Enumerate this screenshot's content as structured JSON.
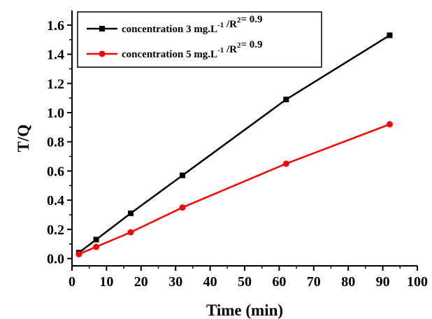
{
  "chart_data": {
    "type": "line",
    "xlabel": "Time (min)",
    "ylabel": "T/Q",
    "xlim": [
      0,
      100
    ],
    "ylim": [
      -0.05,
      1.7
    ],
    "x_ticks": [
      "0",
      "10",
      "20",
      "30",
      "40",
      "50",
      "60",
      "70",
      "80",
      "90",
      "100"
    ],
    "y_ticks": [
      "0.0",
      "0.2",
      "0.4",
      "0.6",
      "0.8",
      "1.0",
      "1.2",
      "1.4",
      "1.6"
    ],
    "legend_position": "top-left",
    "grid": false,
    "series": [
      {
        "name": "concentration 3 mg.L-1 /R2= 0.9",
        "legend": {
          "pre": "concentration 3 mg.L",
          "sup1": "-1",
          "mid": " /R",
          "sup2": "2",
          "post": "= 0.9"
        },
        "color": "#000000",
        "marker": "square",
        "x": [
          2,
          7,
          17,
          32,
          62,
          92
        ],
        "y": [
          0.04,
          0.13,
          0.31,
          0.57,
          1.09,
          1.53
        ]
      },
      {
        "name": "concentration 5 mg.L-1 /R2= 0.9",
        "legend": {
          "pre": "concentration 5 mg.L",
          "sup1": "-1",
          "mid": " /R",
          "sup2": "2",
          "post": "= 0.9"
        },
        "color": "#ff0000",
        "marker": "circle",
        "x": [
          2,
          7,
          17,
          32,
          62,
          92
        ],
        "y": [
          0.03,
          0.08,
          0.18,
          0.35,
          0.65,
          0.92
        ]
      }
    ]
  }
}
